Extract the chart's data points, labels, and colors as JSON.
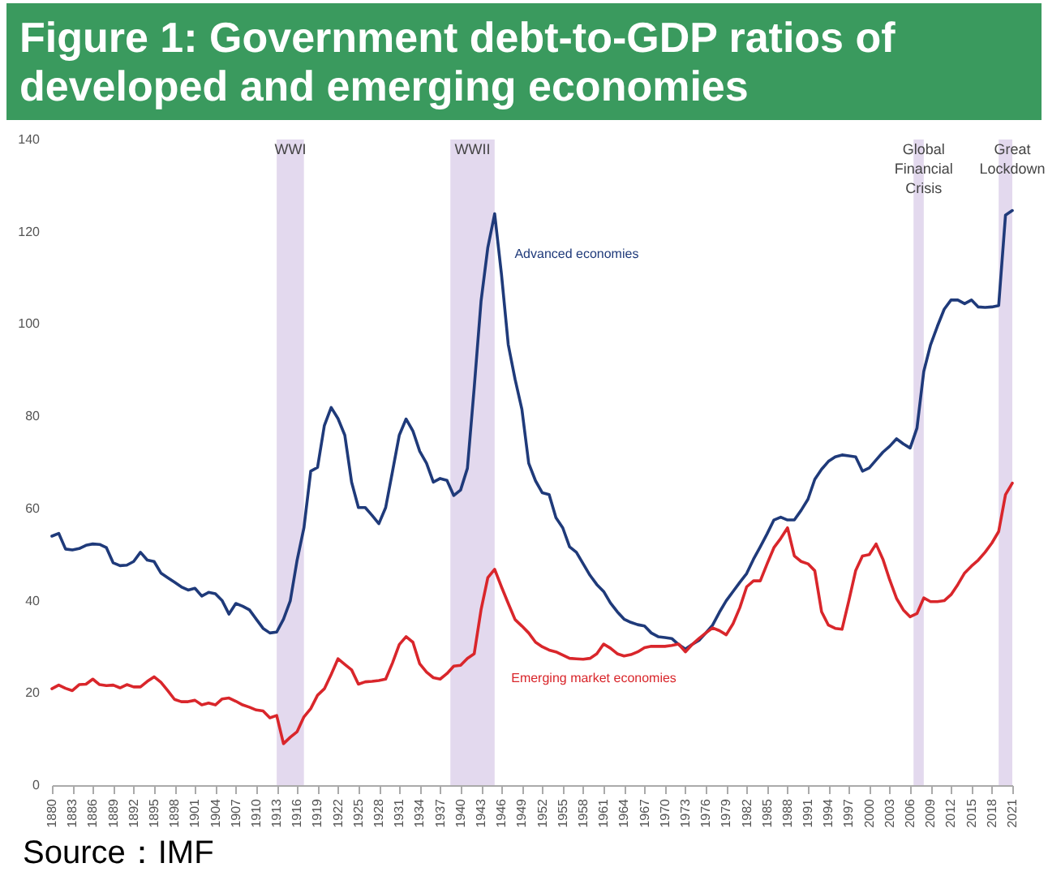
{
  "chart_data": {
    "type": "line",
    "title": "Figure 1: Government debt-to-GDP ratios of developed and emerging economies",
    "x": [
      1880,
      1881,
      1882,
      1883,
      1884,
      1885,
      1886,
      1887,
      1888,
      1889,
      1890,
      1891,
      1892,
      1893,
      1894,
      1895,
      1896,
      1897,
      1898,
      1899,
      1900,
      1901,
      1902,
      1903,
      1904,
      1905,
      1906,
      1907,
      1908,
      1909,
      1910,
      1911,
      1912,
      1913,
      1914,
      1915,
      1916,
      1917,
      1918,
      1919,
      1920,
      1921,
      1922,
      1923,
      1924,
      1925,
      1926,
      1927,
      1928,
      1929,
      1930,
      1931,
      1932,
      1933,
      1934,
      1935,
      1936,
      1937,
      1938,
      1939,
      1940,
      1941,
      1942,
      1943,
      1944,
      1945,
      1946,
      1947,
      1948,
      1949,
      1950,
      1951,
      1952,
      1953,
      1954,
      1955,
      1956,
      1957,
      1958,
      1959,
      1960,
      1961,
      1962,
      1963,
      1964,
      1965,
      1966,
      1967,
      1968,
      1969,
      1970,
      1971,
      1972,
      1973,
      1974,
      1975,
      1976,
      1977,
      1978,
      1979,
      1980,
      1981,
      1982,
      1983,
      1984,
      1985,
      1986,
      1987,
      1988,
      1989,
      1990,
      1991,
      1992,
      1993,
      1994,
      1995,
      1996,
      1997,
      1998,
      1999,
      2000,
      2001,
      2002,
      2003,
      2004,
      2005,
      2006,
      2007,
      2008,
      2009,
      2010,
      2011,
      2012,
      2013,
      2014,
      2015,
      2016,
      2017,
      2018,
      2019,
      2020,
      2021
    ],
    "series": [
      {
        "color": "#1f3a7a",
        "values": [
          54,
          54.6,
          51.2,
          51,
          51.3,
          52,
          52.3,
          52.2,
          51.5,
          48.2,
          47.6,
          47.7,
          48.5,
          50.5,
          48.8,
          48.5,
          46,
          45,
          44,
          43,
          42.3,
          42.7,
          41,
          41.8,
          41.5,
          40,
          37.1,
          39.4,
          38.8,
          38,
          36,
          34,
          33,
          33.2,
          36,
          40,
          48.8,
          55.8,
          68.1,
          68.9,
          78,
          81.9,
          79.5,
          75.9,
          65.7,
          60.2,
          60.2,
          58.5,
          56.7,
          60.2,
          68,
          75.9,
          79.4,
          76.8,
          72.4,
          69.8,
          65.7,
          66.5,
          66.1,
          62.8,
          64,
          68.7,
          86.2,
          104.9,
          116.6,
          123.9,
          110.8,
          95.5,
          88,
          81.5,
          69.8,
          66,
          63.4,
          63,
          58,
          55.8,
          51.7,
          50.5,
          48,
          45.5,
          43.5,
          42,
          39.5,
          37.6,
          36,
          35.3,
          34.8,
          34.5,
          33,
          32.2,
          32,
          31.8,
          30.5,
          29.5,
          30.5,
          31.4,
          33,
          34.7,
          37.5,
          40,
          42,
          44,
          45.9,
          49,
          51.7,
          54.5,
          57.5,
          58.1,
          57.5,
          57.5,
          59.6,
          62,
          66.3,
          68.5,
          70.2,
          71.2,
          71.6,
          71.4,
          71.2,
          68.1,
          68.8,
          70.5,
          72.2,
          73.5,
          75.1,
          74,
          73.1,
          77.4,
          89.7,
          95.5,
          99.5,
          103.2,
          105.2,
          105.2,
          104.4,
          105.2,
          103.7,
          103.6,
          103.7,
          104,
          123.6,
          124.6
        ]
      },
      {
        "color": "#d9262b",
        "values": [
          20.9,
          21.7,
          21,
          20.5,
          21.8,
          21.9,
          23,
          21.8,
          21.6,
          21.7,
          21.1,
          21.8,
          21.3,
          21.3,
          22.5,
          23.5,
          22.3,
          20.5,
          18.6,
          18.1,
          18.1,
          18.4,
          17.4,
          17.8,
          17.4,
          18.7,
          18.9,
          18.2,
          17.4,
          16.9,
          16.3,
          16.1,
          14.6,
          15.1,
          9,
          10.4,
          11.6,
          14.8,
          16.6,
          19.5,
          20.9,
          24,
          27.4,
          26.2,
          25,
          21.9,
          22.4,
          22.5,
          22.7,
          23,
          26.5,
          30.5,
          32.2,
          31,
          26.3,
          24.5,
          23.3,
          23,
          24.2,
          25.8,
          26,
          27.5,
          28.5,
          38,
          45,
          46.8,
          43,
          39.4,
          35.9,
          34.5,
          33,
          31,
          30,
          29.3,
          28.9,
          28.2,
          27.5,
          27.4,
          27.3,
          27.5,
          28.5,
          30.6,
          29.7,
          28.5,
          28,
          28.3,
          28.9,
          29.8,
          30.1,
          30.1,
          30.1,
          30.3,
          30.6,
          28.9,
          30.5,
          31.8,
          33,
          34.1,
          33.5,
          32.6,
          35,
          38.5,
          43,
          44.3,
          44.3,
          48,
          51.5,
          53.5,
          55.8,
          49.7,
          48.5,
          48,
          46.5,
          37.6,
          34.7,
          34,
          33.8,
          40,
          46.5,
          49.7,
          50,
          52.3,
          49,
          44.5,
          40.5,
          38,
          36.5,
          37.2,
          40.6,
          39.8,
          39.8,
          40,
          41.3,
          43.5,
          46,
          47.5,
          48.8,
          50.5,
          52.5,
          55,
          63,
          65.5
        ]
      }
    ],
    "xlim": [
      1880,
      2021
    ],
    "xticks": [
      1880,
      1883,
      1886,
      1889,
      1892,
      1895,
      1898,
      1901,
      1904,
      1907,
      1910,
      1913,
      1916,
      1919,
      1922,
      1925,
      1928,
      1931,
      1934,
      1937,
      1940,
      1943,
      1946,
      1949,
      1952,
      1955,
      1958,
      1961,
      1964,
      1967,
      1970,
      1973,
      1976,
      1979,
      1982,
      1985,
      1988,
      1991,
      1994,
      1997,
      2000,
      2003,
      2006,
      2009,
      2012,
      2015,
      2018,
      2021
    ],
    "ylim": [
      0,
      140
    ],
    "yticks": [
      0,
      20,
      40,
      60,
      80,
      100,
      120,
      140
    ],
    "line_style": "solid",
    "marker": "none",
    "bands": [
      {
        "axis": "x",
        "from": 1913,
        "to": 1917,
        "label": "WWI",
        "color": "#e3d9ee"
      },
      {
        "axis": "x",
        "from": 1938.5,
        "to": 1945,
        "label": "WWII",
        "color": "#e3d9ee"
      },
      {
        "axis": "x",
        "from": 2006.5,
        "to": 2008,
        "label": "Global Financial Crisis",
        "color": "#e3d9ee"
      },
      {
        "axis": "x",
        "from": 2019,
        "to": 2021,
        "label": "Great Lockdown",
        "color": "#e3d9ee"
      }
    ],
    "annotations": [
      {
        "text": "Advanced economies",
        "x": 1946.5,
        "y": 115
      },
      {
        "text": "Emerging market economies",
        "x": 1946,
        "y": 23
      },
      "Source：IMF"
    ]
  }
}
